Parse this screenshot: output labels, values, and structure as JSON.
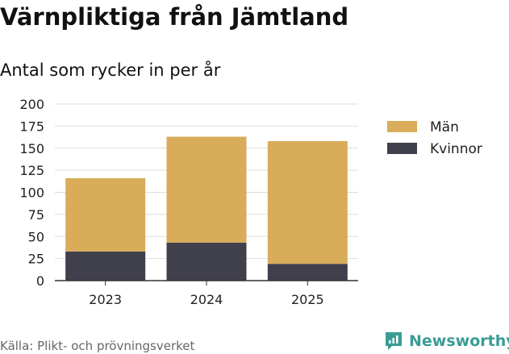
{
  "header": {
    "title": "Värnpliktiga från Jämtland",
    "subtitle": "Antal som rycker in per år"
  },
  "footer": {
    "source": "Källa: Plikt- och prövningsverket",
    "brand": "Newsworthy",
    "brand_icon": "newsworthy-logo-icon"
  },
  "colors": {
    "man": "#d9ac5a",
    "kvinnor": "#403f4c",
    "grid": "#dddddd",
    "brand": "#3a9c94"
  },
  "chart_data": {
    "type": "bar",
    "stacked": true,
    "title": "Värnpliktiga från Jämtland",
    "subtitle": "Antal som rycker in per år",
    "categories": [
      "2023",
      "2024",
      "2025"
    ],
    "series": [
      {
        "name": "Kvinnor",
        "values": [
          33,
          43,
          19
        ]
      },
      {
        "name": "Män",
        "values": [
          83,
          120,
          139
        ]
      }
    ],
    "legend_order": [
      "Män",
      "Kvinnor"
    ],
    "legend_position": "right",
    "ylim": [
      0,
      200
    ],
    "yticks": [
      0,
      25,
      50,
      75,
      100,
      125,
      150,
      175,
      200
    ],
    "xlabel": "",
    "ylabel": "",
    "grid": true
  }
}
